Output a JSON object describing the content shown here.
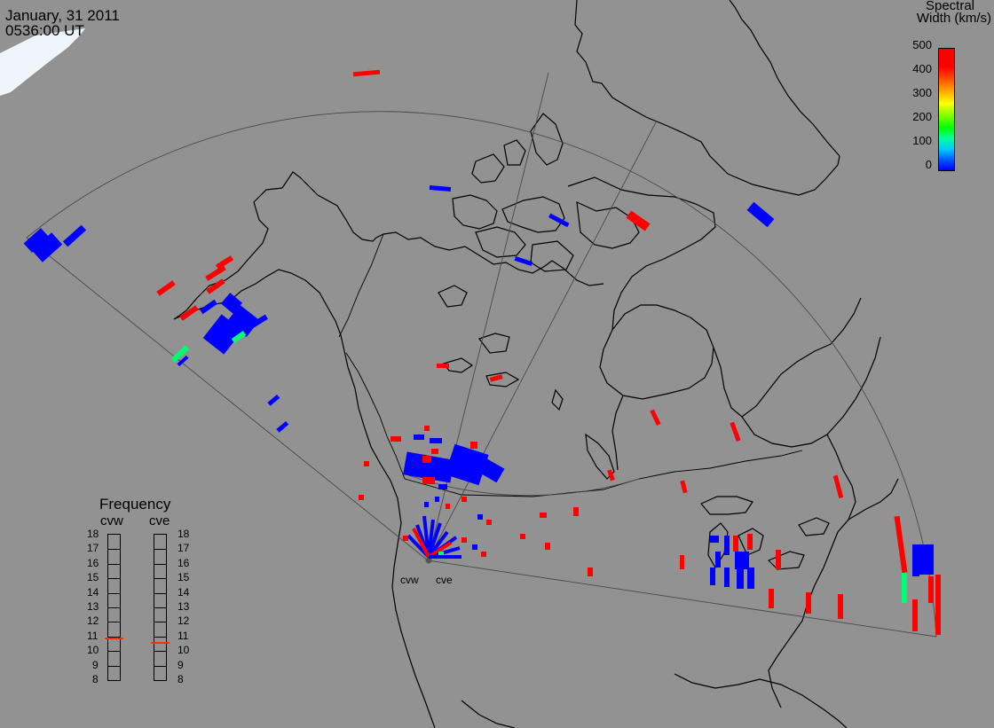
{
  "header": {
    "date": "January, 31 2011",
    "time": "0536:00 UT"
  },
  "colorbar": {
    "title_line1": "Spectral",
    "title_line2": "Width (km/s)",
    "ticks": [
      "500",
      "400",
      "300",
      "200",
      "100",
      "0"
    ],
    "range": [
      0,
      500
    ],
    "colors": [
      "#0000ff",
      "#00c8ff",
      "#00ff00",
      "#ffff00",
      "#ffa000",
      "#ff0000"
    ]
  },
  "frequency_panel": {
    "title": "Frequency",
    "radars": [
      {
        "name": "cvw",
        "frequency_mhz": 10.8
      },
      {
        "name": "cve",
        "frequency_mhz": 10.5
      }
    ],
    "scale_labels": [
      "18",
      "17",
      "16",
      "15",
      "14",
      "13",
      "12",
      "11",
      "10",
      "9",
      "8"
    ],
    "scale_range": [
      8,
      18
    ]
  },
  "sites": [
    {
      "label": "cvw"
    },
    {
      "label": "cve"
    }
  ],
  "colors": {
    "background": "#929292",
    "coast": "#000000",
    "fov": "#4a4a4a",
    "low_width": "#0000ff",
    "mid_width": "#00ff70",
    "high_width": "#ff0000"
  }
}
